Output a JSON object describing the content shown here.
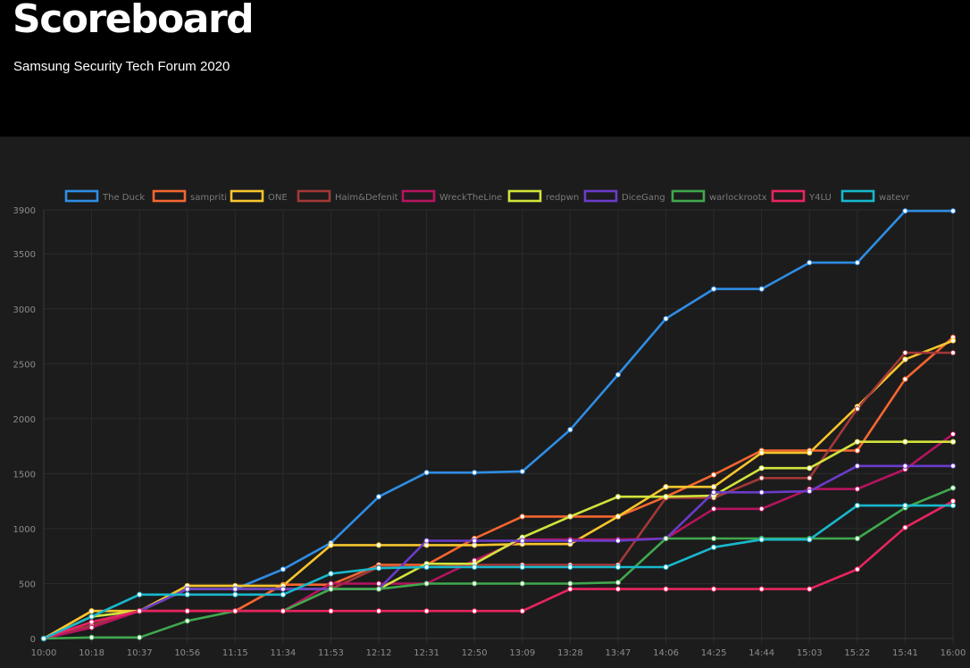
{
  "header": {
    "title": "Scoreboard",
    "subtitle": "Samsung Security Tech Forum 2020"
  },
  "chart_data": {
    "type": "line",
    "legend_position": "top",
    "grid": true,
    "ylim": [
      0,
      3900
    ],
    "y_ticks": [
      0,
      500,
      1000,
      1500,
      2000,
      2500,
      3000,
      3500,
      3900
    ],
    "x": [
      "10:00",
      "10:18",
      "10:37",
      "10:56",
      "11:15",
      "11:34",
      "11:53",
      "12:12",
      "12:31",
      "12:50",
      "13:09",
      "13:28",
      "13:47",
      "14:06",
      "14:25",
      "14:44",
      "15:03",
      "15:22",
      "15:41",
      "16:00"
    ],
    "series": [
      {
        "name": "The Duck",
        "color": "#2f8de4",
        "values": [
          0,
          200,
          250,
          450,
          450,
          630,
          870,
          1290,
          1510,
          1510,
          1520,
          1900,
          2400,
          2910,
          3180,
          3180,
          3420,
          3420,
          3890,
          3890
        ]
      },
      {
        "name": "sampriti",
        "color": "#f4662f",
        "values": [
          0,
          250,
          250,
          250,
          250,
          490,
          490,
          670,
          670,
          910,
          1110,
          1110,
          1110,
          1290,
          1490,
          1710,
          1710,
          1710,
          2360,
          2740
        ]
      },
      {
        "name": "ONE",
        "color": "#f8c52d",
        "values": [
          0,
          250,
          250,
          480,
          480,
          480,
          850,
          850,
          850,
          850,
          860,
          860,
          1110,
          1380,
          1380,
          1690,
          1690,
          2110,
          2540,
          2710
        ]
      },
      {
        "name": "Haim&Defenit",
        "color": "#a33838",
        "values": [
          0,
          120,
          250,
          250,
          250,
          250,
          450,
          650,
          650,
          670,
          670,
          670,
          670,
          1280,
          1280,
          1460,
          1460,
          2090,
          2600,
          2600
        ]
      },
      {
        "name": "WreckTheLine",
        "color": "#b5145f",
        "values": [
          0,
          100,
          250,
          250,
          250,
          250,
          500,
          500,
          500,
          710,
          900,
          900,
          900,
          910,
          1180,
          1180,
          1360,
          1360,
          1540,
          1860
        ]
      },
      {
        "name": "redpwn",
        "color": "#d2e33b",
        "values": [
          0,
          200,
          250,
          450,
          450,
          450,
          450,
          450,
          680,
          680,
          920,
          1110,
          1290,
          1290,
          1300,
          1550,
          1550,
          1790,
          1790,
          1790
        ]
      },
      {
        "name": "DiceGang",
        "color": "#6a3cc9",
        "values": [
          0,
          150,
          250,
          450,
          450,
          450,
          450,
          450,
          890,
          890,
          890,
          890,
          890,
          910,
          1330,
          1330,
          1340,
          1570,
          1570,
          1570
        ]
      },
      {
        "name": "warlockrootx",
        "color": "#3fa84d",
        "values": [
          0,
          10,
          10,
          160,
          250,
          250,
          450,
          450,
          500,
          500,
          500,
          500,
          510,
          910,
          910,
          910,
          910,
          910,
          1190,
          1370
        ]
      },
      {
        "name": "Y4LU",
        "color": "#e8245e",
        "values": [
          0,
          150,
          250,
          250,
          250,
          250,
          250,
          250,
          250,
          250,
          250,
          450,
          450,
          450,
          450,
          450,
          450,
          630,
          1010,
          1250
        ]
      },
      {
        "name": "watevr",
        "color": "#18b8cc",
        "values": [
          0,
          200,
          400,
          400,
          400,
          400,
          590,
          640,
          650,
          650,
          650,
          650,
          650,
          650,
          830,
          900,
          900,
          1210,
          1210,
          1210
        ]
      }
    ]
  }
}
